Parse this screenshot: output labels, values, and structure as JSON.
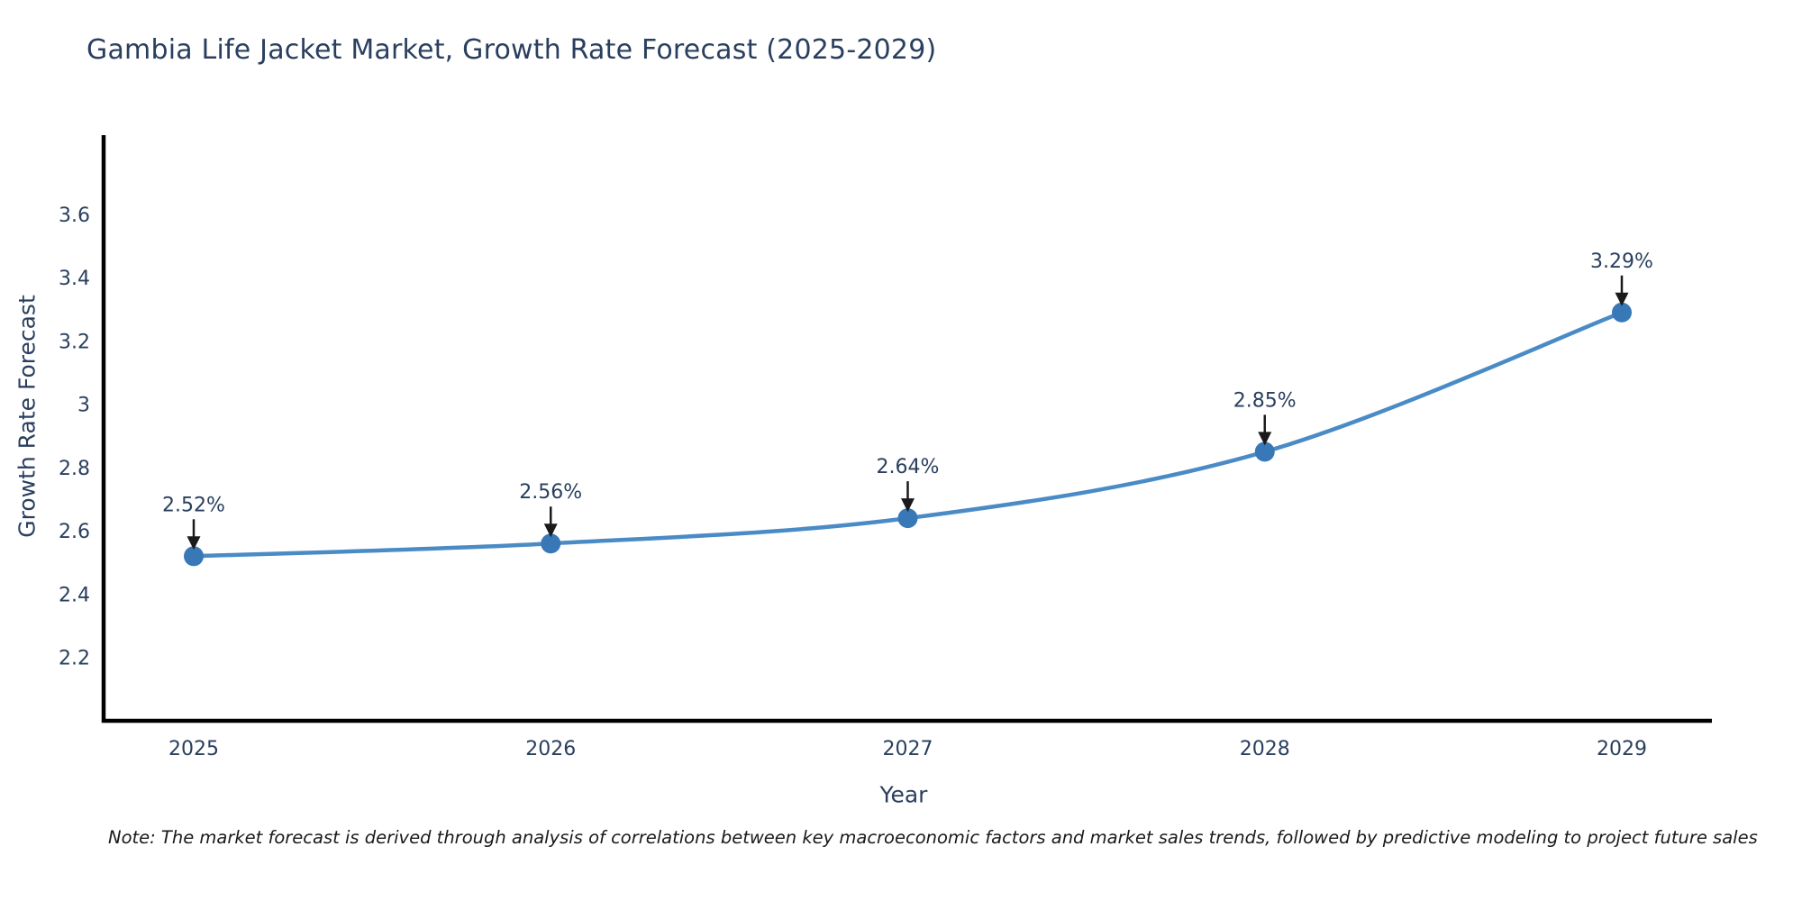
{
  "title": "Gambia Life Jacket Market, Growth Rate Forecast (2025-2029)",
  "note": "Note: The market forecast is derived through analysis of correlations between key macroeconomic factors and market sales trends, followed by predictive modeling to project future sales",
  "colors": {
    "title_text": "#2a3f5f",
    "tick_text": "#2a3f5f",
    "axis_line": "#000000",
    "series_line": "#4a8bc6",
    "marker_fill": "#3878b6",
    "annotation_text": "#2a3f5f",
    "annotation_arrow": "#1a1a1a",
    "note_text": "#1a1a1a",
    "background": "#ffffff"
  },
  "chart_data": {
    "type": "line",
    "title": "Gambia Life Jacket Market, Growth Rate Forecast (2025-2029)",
    "xlabel": "Year",
    "ylabel": "Growth Rate Forecast",
    "x": [
      2025,
      2026,
      2027,
      2028,
      2029
    ],
    "values": [
      2.52,
      2.56,
      2.64,
      2.85,
      3.29
    ],
    "point_labels": [
      "2.52%",
      "2.56%",
      "2.64%",
      "2.85%",
      "3.29%"
    ],
    "ylim": [
      2.0,
      3.85
    ],
    "yticks": [
      2.2,
      2.4,
      2.6,
      2.8,
      3,
      3.2,
      3.4,
      3.6
    ],
    "grid": false,
    "legend": "none",
    "line_shape": "spline",
    "annotation_style": "value-with-down-arrow"
  }
}
